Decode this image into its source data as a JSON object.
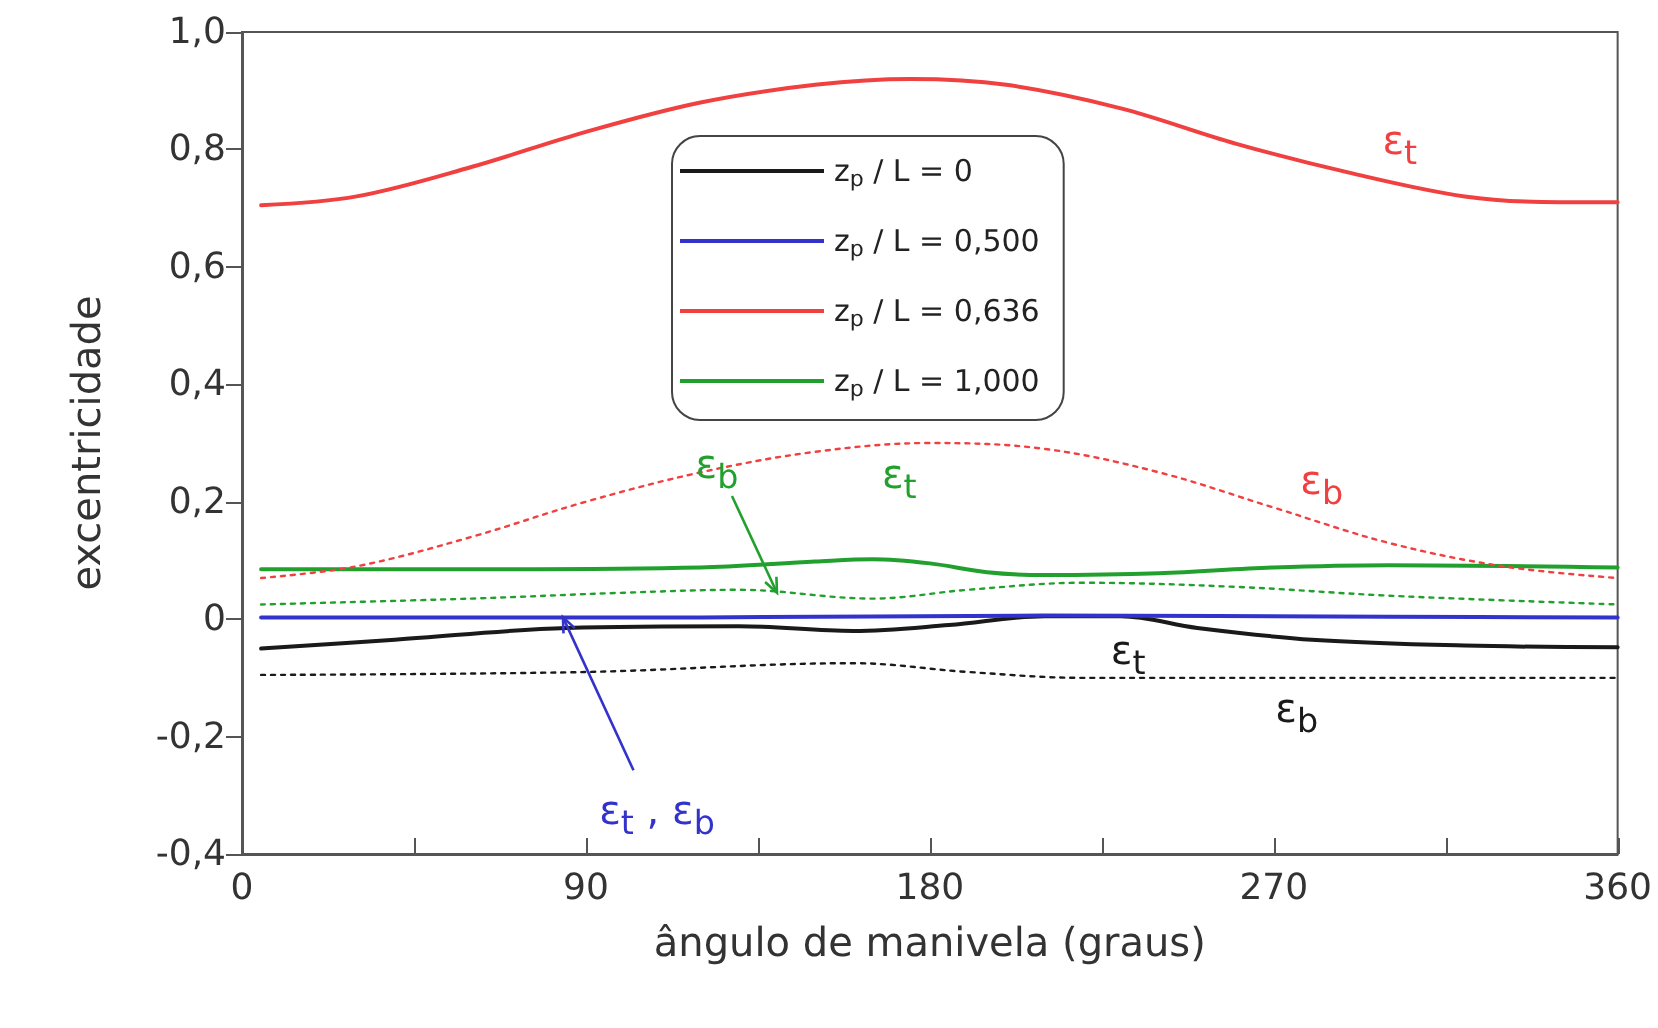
{
  "chart_data": {
    "type": "line",
    "xlabel": "ângulo de manivela (graus)",
    "ylabel": "excentricidade",
    "xlim": [
      0,
      360
    ],
    "xticks": [
      0,
      {
        "value": 45,
        "label": null
      },
      90,
      {
        "value": 135,
        "label": null
      },
      180,
      {
        "value": 225,
        "label": null
      },
      270,
      {
        "value": 315,
        "label": null
      },
      360
    ],
    "ylim": [
      -0.4,
      1.0
    ],
    "yticks": [
      {
        "value": -0.4,
        "label": "-0,4"
      },
      {
        "value": -0.2,
        "label": "-0,2"
      },
      0,
      {
        "value": 0.2,
        "label": "0,2"
      },
      {
        "value": 0.4,
        "label": "0,4"
      },
      {
        "value": 0.6,
        "label": "0,6"
      },
      {
        "value": 0.8,
        "label": "0,8"
      },
      {
        "value": 1.0,
        "label": "1,0"
      }
    ],
    "grid": false,
    "legend": "top",
    "marker": "none",
    "series": [
      {
        "name": "z$_{p}$ / L = 0",
        "color": "#1a1a1a",
        "line_style": "solid",
        "x": [
          5,
          40,
          85,
          130,
          160,
          185,
          210,
          230,
          250,
          280,
          320,
          360
        ],
        "values": [
          -0.05,
          -0.035,
          -0.015,
          -0.012,
          -0.02,
          -0.01,
          0.005,
          0.005,
          -0.015,
          -0.035,
          -0.045,
          -0.048
        ]
      },
      {
        "name": "z$_{p}$ / L = 0,500",
        "color": "#3333cc",
        "line_style": "solid",
        "x": [
          5,
          120,
          210,
          300,
          360
        ],
        "values": [
          0.003,
          0.003,
          0.006,
          0.004,
          0.003
        ]
      },
      {
        "name": "z$_{p}$ / L = 0,636",
        "color": "#f04040",
        "line_style": "solid",
        "x": [
          5,
          30,
          60,
          90,
          120,
          150,
          175,
          200,
          230,
          260,
          290,
          320,
          345,
          360
        ],
        "values": [
          0.705,
          0.72,
          0.77,
          0.83,
          0.88,
          0.91,
          0.92,
          0.91,
          0.87,
          0.81,
          0.76,
          0.72,
          0.71,
          0.71
        ]
      },
      {
        "name": "z$_{p}$ / L = 1,000",
        "color": "#22a02e",
        "line_style": "solid",
        "x": [
          5,
          60,
          120,
          150,
          165,
          180,
          195,
          210,
          240,
          270,
          300,
          360
        ],
        "values": [
          0.085,
          0.085,
          0.088,
          0.098,
          0.102,
          0.095,
          0.08,
          0.075,
          0.078,
          0.088,
          0.092,
          0.088
        ]
      },
      {
        "color": "#1a1a1a",
        "line_style": "dotted",
        "x": [
          5,
          90,
          160,
          190,
          220,
          360
        ],
        "values": [
          -0.095,
          -0.09,
          -0.075,
          -0.09,
          -0.1,
          -0.1
        ]
      },
      {
        "color": "#f04040",
        "line_style": "dotted",
        "x": [
          5,
          30,
          60,
          90,
          120,
          150,
          180,
          210,
          240,
          270,
          300,
          330,
          360
        ],
        "values": [
          0.07,
          0.09,
          0.14,
          0.2,
          0.25,
          0.285,
          0.3,
          0.29,
          0.25,
          0.19,
          0.13,
          0.09,
          0.07
        ]
      },
      {
        "color": "#22a02e",
        "line_style": "dotted",
        "x": [
          5,
          60,
          100,
          130,
          165,
          190,
          220,
          260,
          300,
          360
        ],
        "values": [
          0.025,
          0.035,
          0.045,
          0.05,
          0.035,
          0.05,
          0.062,
          0.055,
          0.04,
          0.025
        ]
      }
    ],
    "annotations": [
      {
        "text": "ε$_{t}$",
        "x": 303,
        "y": 0.743
      },
      {
        "text": "ε$_{b}$",
        "x": 270,
        "y": 0.19
      },
      {
        "text": "ε$_{b}$",
        "x": 140,
        "y": 0.045
      },
      {
        "text": "ε$_{t}$",
        "x": 172,
        "y": 0.1
      },
      {
        "text": "ε$_{t}$",
        "x": 245,
        "y": -0.01
      },
      {
        "text": "ε$_{b}$",
        "x": 276,
        "y": -0.1
      },
      {
        "text": "ε$_{t}$ , ε$_{b}$",
        "x": 84,
        "y": 0.003
      }
    ]
  }
}
